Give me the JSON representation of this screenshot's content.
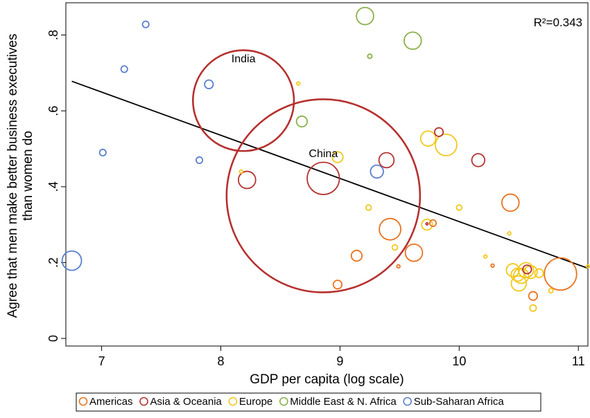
{
  "chart_data": {
    "type": "scatter",
    "title": "",
    "xlabel": "GDP per capita (log scale)",
    "ylabel_lines": [
      "Agree that men make better business executives",
      "than women do"
    ],
    "xlim": [
      6.7,
      11.08
    ],
    "ylim": [
      -0.02,
      0.885
    ],
    "xticks": [
      7,
      8,
      9,
      10,
      11
    ],
    "xtick_labels": [
      "7",
      "8",
      "9",
      "10",
      "11"
    ],
    "yticks": [
      0,
      0.2,
      0.4,
      0.6,
      0.8
    ],
    "ytick_labels": [
      "0",
      ".2",
      ".4",
      ".6",
      ".8"
    ],
    "grid": false,
    "annotation": "R²=0.343",
    "fit_line": {
      "x": [
        6.75,
        11.08
      ],
      "y": [
        0.678,
        0.185
      ]
    },
    "colors": {
      "Americas": "#e8731f",
      "Asia & Oceania": "#b5312f",
      "Europe": "#f2c81c",
      "Middle East & N. Africa": "#8bb04a",
      "Sub-Saharan Africa": "#5a7fcf"
    },
    "legend": {
      "position": "bottom",
      "items": [
        "Americas",
        "Asia & Oceania",
        "Europe",
        "Middle East & N. Africa",
        "Sub-Saharan Africa"
      ]
    },
    "point_labels": [
      {
        "text": "India",
        "x": 8.19,
        "y": 0.728
      },
      {
        "text": "China",
        "x": 8.86,
        "y": 0.478
      }
    ],
    "series": [
      {
        "name": "Americas",
        "points": [
          [
            8.98,
            0.142,
            4
          ],
          [
            9.14,
            0.218,
            5
          ],
          [
            9.42,
            0.288,
            10
          ],
          [
            9.62,
            0.226,
            8
          ],
          [
            9.78,
            0.304,
            3
          ],
          [
            9.49,
            0.19,
            1.5
          ],
          [
            10.28,
            0.192,
            1.5
          ],
          [
            10.43,
            0.358,
            8
          ],
          [
            10.62,
            0.112,
            4
          ],
          [
            10.85,
            0.17,
            15
          ]
        ]
      },
      {
        "name": "Asia & Oceania",
        "points": [
          [
            8.19,
            0.627,
            47
          ],
          [
            8.86,
            0.376,
            90
          ],
          [
            8.86,
            0.422,
            15
          ],
          [
            8.22,
            0.418,
            8
          ],
          [
            9.39,
            0.47,
            7
          ],
          [
            9.83,
            0.544,
            4
          ],
          [
            10.16,
            0.47,
            6
          ],
          [
            10.57,
            0.182,
            4
          ],
          [
            9.73,
            0.302,
            1
          ]
        ]
      },
      {
        "name": "Europe",
        "points": [
          [
            8.65,
            0.672,
            1.5
          ],
          [
            8.17,
            0.44,
            1.5
          ],
          [
            8.98,
            0.478,
            5
          ],
          [
            9.24,
            0.345,
            2.5
          ],
          [
            9.46,
            0.24,
            2.5
          ],
          [
            9.74,
            0.527,
            7
          ],
          [
            9.89,
            0.51,
            10
          ],
          [
            9.73,
            0.3,
            5
          ],
          [
            10.0,
            0.345,
            2.5
          ],
          [
            10.22,
            0.216,
            1.5
          ],
          [
            10.42,
            0.277,
            1.5
          ],
          [
            10.45,
            0.18,
            6
          ],
          [
            10.49,
            0.168,
            6
          ],
          [
            10.52,
            0.165,
            7
          ],
          [
            10.5,
            0.145,
            7
          ],
          [
            10.56,
            0.18,
            7
          ],
          [
            10.6,
            0.175,
            6
          ],
          [
            10.67,
            0.172,
            4
          ],
          [
            10.62,
            0.08,
            3
          ],
          [
            10.77,
            0.126,
            2
          ],
          [
            11.08,
            0.19,
            1.5
          ]
        ]
      },
      {
        "name": "Middle East & N. Africa",
        "points": [
          [
            9.21,
            0.85,
            8
          ],
          [
            9.61,
            0.785,
            8
          ],
          [
            9.25,
            0.744,
            2
          ],
          [
            8.68,
            0.572,
            5
          ]
        ]
      },
      {
        "name": "Sub-Saharan Africa",
        "points": [
          [
            6.75,
            0.205,
            9
          ],
          [
            7.01,
            0.49,
            3
          ],
          [
            7.19,
            0.71,
            3
          ],
          [
            7.37,
            0.828,
            3
          ],
          [
            7.82,
            0.47,
            3
          ],
          [
            7.9,
            0.67,
            4
          ],
          [
            9.31,
            0.44,
            6
          ]
        ]
      }
    ]
  }
}
